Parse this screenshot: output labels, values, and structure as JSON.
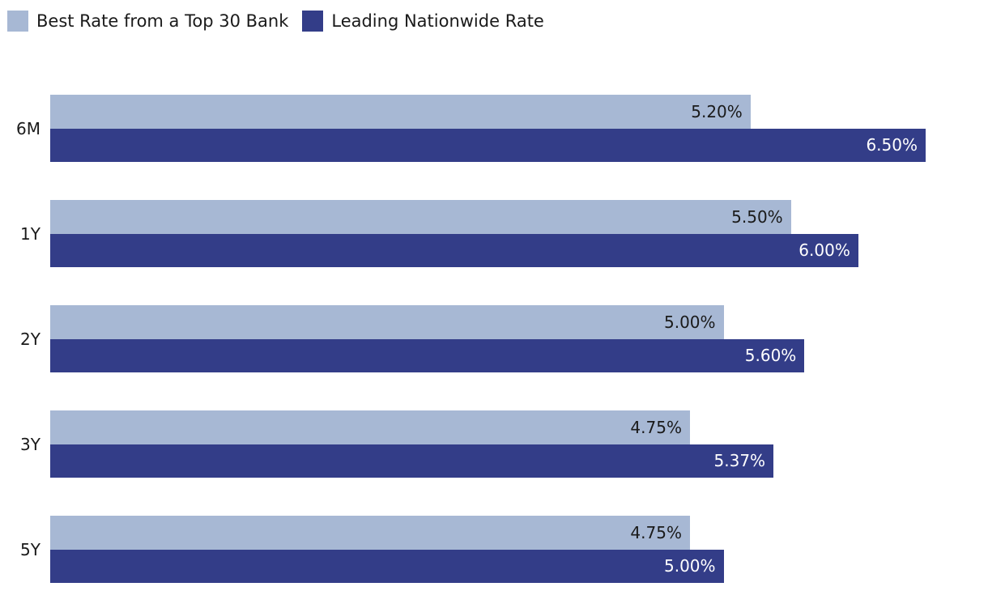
{
  "chart_data": {
    "type": "bar",
    "orientation": "horizontal",
    "title": "",
    "xlabel": "",
    "ylabel": "",
    "grid": false,
    "legend_position": "top-left",
    "xlim": [
      0,
      6.5
    ],
    "categories": [
      "6M",
      "1Y",
      "2Y",
      "3Y",
      "5Y"
    ],
    "series": [
      {
        "name": "Best Rate from a Top 30 Bank",
        "color": "#a7b8d4",
        "label_color": "#1a1a1a",
        "values": [
          5.2,
          5.5,
          5.0,
          4.75,
          4.75
        ],
        "labels": [
          "5.20%",
          "5.50%",
          "5.00%",
          "4.75%",
          "4.75%"
        ]
      },
      {
        "name": "Leading Nationwide Rate",
        "color": "#333d88",
        "label_color": "#ffffff",
        "values": [
          6.5,
          6.0,
          5.6,
          5.37,
          5.0
        ],
        "labels": [
          "6.50%",
          "6.00%",
          "5.60%",
          "5.37%",
          "5.00%"
        ]
      }
    ]
  }
}
